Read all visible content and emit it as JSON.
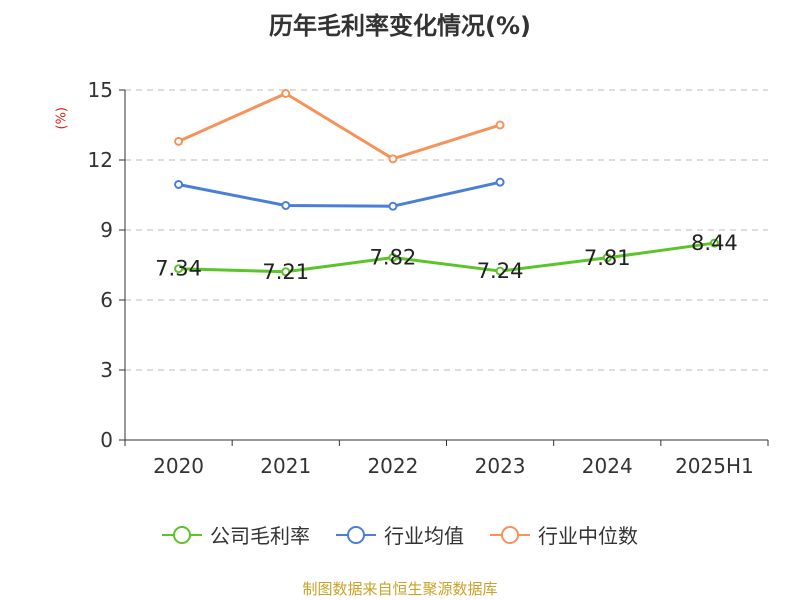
{
  "chart_data": {
    "type": "line",
    "title": "历年毛利率变化情况(%)",
    "ylabel": "(%)",
    "categories": [
      "2020",
      "2021",
      "2022",
      "2023",
      "2024",
      "2025H1"
    ],
    "ylim": [
      0,
      15
    ],
    "yticks": [
      0,
      3,
      6,
      9,
      12,
      15
    ],
    "grid": "horizontal dashed",
    "legend_position": "bottom",
    "series": [
      {
        "name": "公司毛利率",
        "color": "#5bc42b",
        "values": [
          7.34,
          7.21,
          7.82,
          7.24,
          7.81,
          8.44
        ],
        "labels": [
          "7.34",
          "7.21",
          "7.82",
          "7.24",
          "7.81",
          "8.44"
        ]
      },
      {
        "name": "行业均值",
        "color": "#4a7fd8",
        "values": [
          10.95,
          10.05,
          10.02,
          11.05,
          null,
          null
        ]
      },
      {
        "name": "行业中位数",
        "color": "#f5935a",
        "values": [
          12.8,
          14.85,
          12.05,
          13.5,
          null,
          null
        ]
      }
    ]
  },
  "source": "制图数据来自恒生聚源数据库"
}
